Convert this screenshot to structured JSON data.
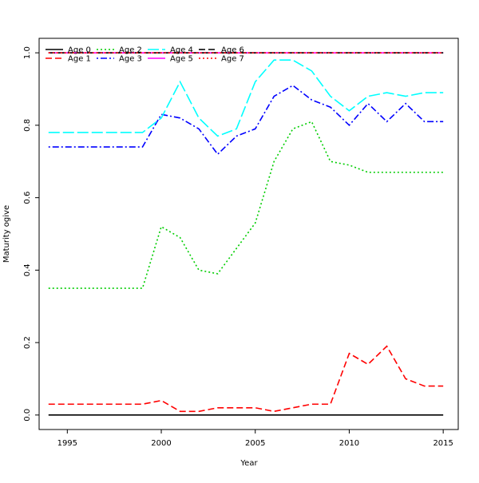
{
  "chart_data": {
    "type": "line",
    "xlabel": "Year",
    "ylabel": "Maturity ogive",
    "xlim": [
      1993.5,
      2015.8
    ],
    "ylim": [
      -0.04,
      1.04
    ],
    "xticks": [
      1995,
      2000,
      2005,
      2010,
      2015
    ],
    "yticks": [
      0.0,
      0.2,
      0.4,
      0.6,
      0.8,
      1.0
    ],
    "ytick_labels": [
      "0.0",
      "0.2",
      "0.4",
      "0.6",
      "0.8",
      "1.0"
    ],
    "grid": false,
    "legend_position": "top-left",
    "x": [
      1994,
      1995,
      1996,
      1997,
      1998,
      1999,
      2000,
      2001,
      2002,
      2003,
      2004,
      2005,
      2006,
      2007,
      2008,
      2009,
      2010,
      2011,
      2012,
      2013,
      2014,
      2015
    ],
    "series": [
      {
        "name": "Age 0",
        "color": "#000000",
        "dash": "solid",
        "values": [
          0,
          0,
          0,
          0,
          0,
          0,
          0,
          0,
          0,
          0,
          0,
          0,
          0,
          0,
          0,
          0,
          0,
          0,
          0,
          0,
          0,
          0
        ]
      },
      {
        "name": "Age 1",
        "color": "#ff0000",
        "dash": "dashed",
        "values": [
          0.03,
          0.03,
          0.03,
          0.03,
          0.03,
          0.03,
          0.04,
          0.01,
          0.01,
          0.02,
          0.02,
          0.02,
          0.01,
          0.02,
          0.03,
          0.03,
          0.17,
          0.14,
          0.19,
          0.1,
          0.08,
          0.08
        ]
      },
      {
        "name": "Age 2",
        "color": "#00cd00",
        "dash": "dotted",
        "values": [
          0.35,
          0.35,
          0.35,
          0.35,
          0.35,
          0.35,
          0.52,
          0.49,
          0.4,
          0.39,
          0.46,
          0.53,
          0.7,
          0.79,
          0.81,
          0.7,
          0.69,
          0.67,
          0.67,
          0.67,
          0.67,
          0.67
        ]
      },
      {
        "name": "Age 3",
        "color": "#0000ff",
        "dash": "dotdash",
        "values": [
          0.74,
          0.74,
          0.74,
          0.74,
          0.74,
          0.74,
          0.83,
          0.82,
          0.79,
          0.72,
          0.77,
          0.79,
          0.88,
          0.91,
          0.87,
          0.85,
          0.8,
          0.86,
          0.81,
          0.86,
          0.81,
          0.81
        ]
      },
      {
        "name": "Age 4",
        "color": "#00ffff",
        "dash": "longdash",
        "values": [
          0.78,
          0.78,
          0.78,
          0.78,
          0.78,
          0.78,
          0.82,
          0.92,
          0.82,
          0.77,
          0.79,
          0.92,
          0.98,
          0.98,
          0.95,
          0.88,
          0.84,
          0.88,
          0.89,
          0.88,
          0.89,
          0.89
        ]
      },
      {
        "name": "Age 5",
        "color": "#ff00ff",
        "dash": "solid",
        "values": [
          1,
          1,
          1,
          1,
          1,
          1,
          1,
          1,
          1,
          1,
          1,
          1,
          1,
          1,
          1,
          1,
          1,
          1,
          1,
          1,
          1,
          1
        ]
      },
      {
        "name": "Age 6",
        "color": "#000000",
        "dash": "dashed",
        "values": [
          1,
          1,
          1,
          1,
          1,
          1,
          1,
          1,
          1,
          1,
          1,
          1,
          1,
          1,
          1,
          1,
          1,
          1,
          1,
          1,
          1,
          1
        ]
      },
      {
        "name": "Age 7",
        "color": "#ff0000",
        "dash": "dotted",
        "values": [
          1,
          1,
          1,
          1,
          1,
          1,
          1,
          1,
          1,
          1,
          1,
          1,
          1,
          1,
          1,
          1,
          1,
          1,
          1,
          1,
          1,
          1
        ]
      }
    ]
  }
}
